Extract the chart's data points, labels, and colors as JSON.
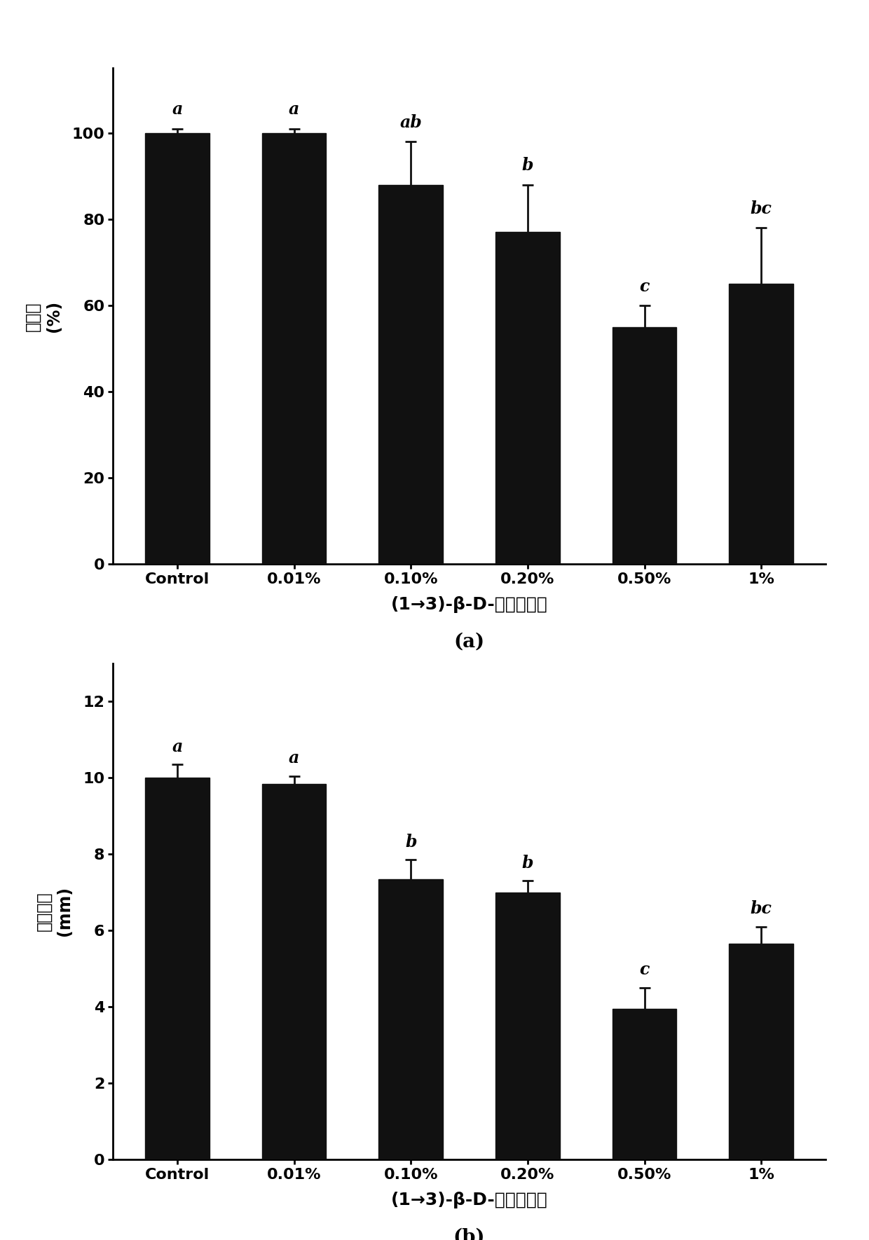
{
  "categories": [
    "Control",
    "0.01%",
    "0.10%",
    "0.20%",
    "0.50%",
    "1%"
  ],
  "chart_a": {
    "values": [
      100,
      100,
      88,
      77,
      55,
      65
    ],
    "errors": [
      1,
      1,
      10,
      11,
      5,
      13
    ],
    "ylabel_lines": [
      "发病率",
      "(%)"
    ],
    "ylim": [
      0,
      115
    ],
    "yticks": [
      0,
      20,
      40,
      60,
      80,
      100
    ],
    "xlabel": "(1→3)-β-D-葡聚糖浓度",
    "label": "(a)",
    "letters": [
      "a",
      "a",
      "ab",
      "b",
      "c",
      "bc"
    ],
    "letter_offsets": [
      2.5,
      2.5,
      2.5,
      2.5,
      2.5,
      2.5
    ]
  },
  "chart_b": {
    "values": [
      10.0,
      9.85,
      7.35,
      7.0,
      3.95,
      5.65
    ],
    "errors": [
      0.35,
      0.2,
      0.5,
      0.3,
      0.55,
      0.45
    ],
    "ylabel_lines": [
      "病斋直径",
      "(mm)"
    ],
    "ylim": [
      0,
      13
    ],
    "yticks": [
      0,
      2,
      4,
      6,
      8,
      10,
      12
    ],
    "xlabel": "(1→3)-β-D-葡聚糖浓度",
    "label": "(b)",
    "letters": [
      "a",
      "a",
      "b",
      "b",
      "c",
      "bc"
    ],
    "letter_offsets": [
      0.25,
      0.25,
      0.25,
      0.25,
      0.25,
      0.25
    ]
  },
  "bar_color": "#111111",
  "bar_width": 0.55,
  "error_color": "#111111",
  "letter_fontsize": 17,
  "tick_fontsize": 16,
  "xlabel_fontsize": 18,
  "ylabel_fontsize": 17,
  "sublabel_fontsize": 20,
  "figure_bg": "#ffffff"
}
